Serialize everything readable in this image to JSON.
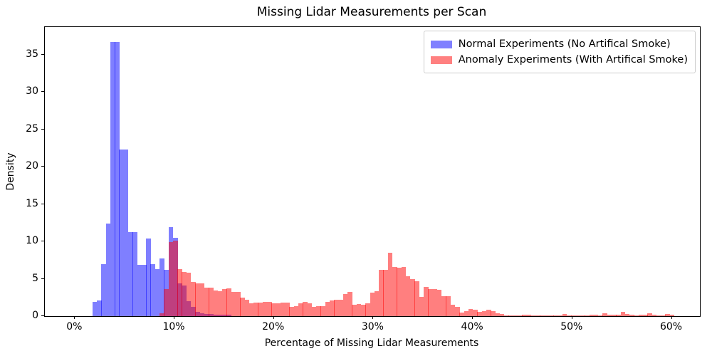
{
  "title": "Missing Lidar Measurements per Scan",
  "axes": {
    "xlabel": "Percentage of Missing Lidar Measurements",
    "ylabel": "Density",
    "x_tick_labels": [
      "0%",
      "10%",
      "20%",
      "30%",
      "40%",
      "50%",
      "60%"
    ],
    "x_tick_values": [
      0,
      10,
      20,
      30,
      40,
      50,
      60
    ],
    "y_tick_labels": [
      "0",
      "5",
      "10",
      "15",
      "20",
      "25",
      "30",
      "35"
    ],
    "y_tick_values": [
      0,
      5,
      10,
      15,
      20,
      25,
      30,
      35
    ]
  },
  "legend": {
    "items": [
      {
        "label": "Normal Experiments (No Artifical Smoke)",
        "color": "#8080ff"
      },
      {
        "label": "Anomaly Experiments (With Artifical Smoke)",
        "color": "#ff8080"
      }
    ]
  },
  "chart_data": {
    "type": "bar",
    "subtype": "overlaid-histograms",
    "title": "Missing Lidar Measurements per Scan",
    "xlabel": "Percentage of Missing Lidar Measurements",
    "ylabel": "Density",
    "xlim": [
      -3.03,
      62.83
    ],
    "ylim": [
      0,
      38.67
    ],
    "grid": false,
    "legend_position": "upper right",
    "bin_width_percent": 0.45,
    "overlap_color": "#bf4080",
    "series": [
      {
        "name": "Normal Experiments (No Artifical Smoke)",
        "color": "rgba(0,0,255,0.5)",
        "bars": [
          [
            1.75,
            1.9
          ],
          [
            2.2,
            2.1
          ],
          [
            2.65,
            7.0
          ],
          [
            3.1,
            12.4
          ],
          [
            3.55,
            36.7
          ],
          [
            4.0,
            36.7
          ],
          [
            4.45,
            22.3
          ],
          [
            4.9,
            22.3
          ],
          [
            5.35,
            11.2
          ],
          [
            5.8,
            11.2
          ],
          [
            6.25,
            6.9
          ],
          [
            6.7,
            6.9
          ],
          [
            7.15,
            10.4
          ],
          [
            7.6,
            7.0
          ],
          [
            8.05,
            6.3
          ],
          [
            8.5,
            7.7
          ],
          [
            8.95,
            6.2
          ],
          [
            9.4,
            11.9
          ],
          [
            9.85,
            10.5
          ],
          [
            10.3,
            4.4
          ],
          [
            10.75,
            4.1
          ],
          [
            11.2,
            2.0
          ],
          [
            11.65,
            1.2
          ],
          [
            12.1,
            0.6
          ],
          [
            12.55,
            0.35
          ],
          [
            13.0,
            0.3
          ],
          [
            13.45,
            0.25
          ],
          [
            13.9,
            0.2
          ],
          [
            14.35,
            0.2
          ],
          [
            14.8,
            0.15
          ],
          [
            15.25,
            0.15
          ]
        ]
      },
      {
        "name": "Anomaly Experiments (With Artifical Smoke)",
        "color": "rgba(255,0,0,0.5)",
        "bars": [
          [
            8.5,
            0.4
          ],
          [
            8.95,
            3.6
          ],
          [
            9.4,
            9.9
          ],
          [
            9.85,
            10.1
          ],
          [
            10.3,
            6.3
          ],
          [
            10.75,
            5.9
          ],
          [
            11.2,
            5.8
          ],
          [
            11.65,
            4.6
          ],
          [
            12.1,
            4.4
          ],
          [
            12.55,
            4.4
          ],
          [
            13.0,
            3.8
          ],
          [
            13.45,
            3.8
          ],
          [
            13.9,
            3.4
          ],
          [
            14.35,
            3.3
          ],
          [
            14.8,
            3.6
          ],
          [
            15.25,
            3.7
          ],
          [
            15.7,
            3.2
          ],
          [
            16.15,
            3.2
          ],
          [
            16.6,
            2.5
          ],
          [
            17.05,
            2.2
          ],
          [
            17.5,
            1.7
          ],
          [
            17.95,
            1.8
          ],
          [
            18.4,
            1.8
          ],
          [
            18.85,
            1.9
          ],
          [
            19.3,
            1.9
          ],
          [
            19.75,
            1.7
          ],
          [
            20.2,
            1.7
          ],
          [
            20.65,
            1.85
          ],
          [
            21.1,
            1.8
          ],
          [
            21.55,
            1.2
          ],
          [
            22.0,
            1.3
          ],
          [
            22.45,
            1.7
          ],
          [
            22.9,
            1.9
          ],
          [
            23.35,
            1.7
          ],
          [
            23.8,
            1.2
          ],
          [
            24.25,
            1.35
          ],
          [
            24.7,
            1.35
          ],
          [
            25.15,
            1.9
          ],
          [
            25.6,
            2.1
          ],
          [
            26.05,
            2.2
          ],
          [
            26.5,
            2.2
          ],
          [
            26.95,
            2.95
          ],
          [
            27.4,
            3.2
          ],
          [
            27.85,
            1.5
          ],
          [
            28.3,
            1.65
          ],
          [
            28.75,
            1.55
          ],
          [
            29.2,
            1.75
          ],
          [
            29.65,
            3.1
          ],
          [
            30.1,
            3.3
          ],
          [
            30.55,
            6.2
          ],
          [
            31.0,
            6.2
          ],
          [
            31.45,
            8.5
          ],
          [
            31.9,
            6.6
          ],
          [
            32.35,
            6.5
          ],
          [
            32.8,
            6.6
          ],
          [
            33.25,
            5.3
          ],
          [
            33.7,
            5.0
          ],
          [
            34.15,
            4.7
          ],
          [
            34.6,
            2.6
          ],
          [
            35.05,
            3.9
          ],
          [
            35.5,
            3.6
          ],
          [
            35.95,
            3.6
          ],
          [
            36.4,
            3.5
          ],
          [
            36.85,
            2.7
          ],
          [
            37.3,
            2.7
          ],
          [
            37.75,
            1.5
          ],
          [
            38.2,
            1.2
          ],
          [
            38.65,
            0.5
          ],
          [
            39.1,
            0.7
          ],
          [
            39.55,
            1.0
          ],
          [
            40.0,
            0.9
          ],
          [
            40.45,
            0.6
          ],
          [
            40.9,
            0.7
          ],
          [
            41.35,
            0.85
          ],
          [
            41.8,
            0.7
          ],
          [
            42.25,
            0.4
          ],
          [
            42.7,
            0.25
          ],
          [
            43.15,
            0.1
          ],
          [
            43.6,
            0.05
          ],
          [
            44.05,
            0.05
          ],
          [
            44.5,
            0.1
          ],
          [
            44.95,
            0.2
          ],
          [
            45.4,
            0.2
          ],
          [
            45.85,
            0.1
          ],
          [
            46.3,
            0.05
          ],
          [
            46.75,
            0.05
          ],
          [
            47.2,
            0.05
          ],
          [
            47.65,
            0.05
          ],
          [
            48.1,
            0.05
          ],
          [
            48.55,
            0.05
          ],
          [
            49.0,
            0.25
          ],
          [
            49.45,
            0.1
          ],
          [
            49.9,
            0.05
          ],
          [
            50.35,
            0.05
          ],
          [
            50.8,
            0.05
          ],
          [
            51.25,
            0.05
          ],
          [
            51.7,
            0.15
          ],
          [
            52.15,
            0.15
          ],
          [
            52.6,
            0.1
          ],
          [
            53.05,
            0.35
          ],
          [
            53.5,
            0.2
          ],
          [
            53.95,
            0.15
          ],
          [
            54.4,
            0.2
          ],
          [
            54.85,
            0.55
          ],
          [
            55.3,
            0.3
          ],
          [
            55.75,
            0.15
          ],
          [
            56.2,
            0.1
          ],
          [
            56.65,
            0.2
          ],
          [
            57.1,
            0.2
          ],
          [
            57.55,
            0.35
          ],
          [
            58.0,
            0.15
          ],
          [
            58.45,
            0.1
          ],
          [
            58.9,
            0.05
          ],
          [
            59.35,
            0.3
          ],
          [
            59.8,
            0.2
          ]
        ]
      }
    ]
  }
}
